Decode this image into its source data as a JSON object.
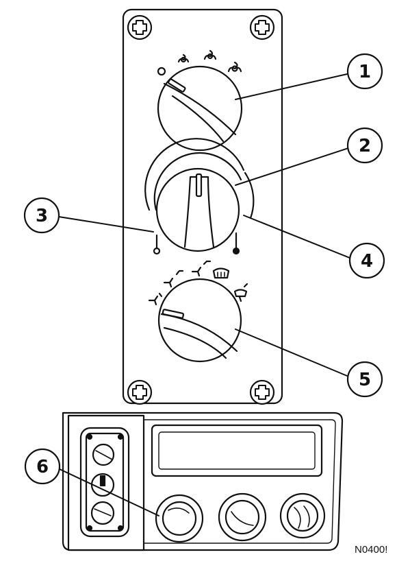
{
  "figure": {
    "code": "N0400!",
    "stroke_color": "#111111",
    "fill_color": "#ffffff"
  },
  "callouts": [
    {
      "id": "callout-1",
      "number": "1"
    },
    {
      "id": "callout-2",
      "number": "2"
    },
    {
      "id": "callout-3",
      "number": "3"
    },
    {
      "id": "callout-4",
      "number": "4"
    },
    {
      "id": "callout-5",
      "number": "5"
    },
    {
      "id": "callout-6",
      "number": "6"
    }
  ],
  "panel": {
    "screw_icon": "phillips-screw-icon",
    "knobs": [
      {
        "name": "fan-speed-knob",
        "icons": [
          "off-circle-icon",
          "fan-low-icon",
          "fan-medium-icon",
          "fan-high-icon"
        ]
      },
      {
        "name": "temperature-knob",
        "icons": [
          "cold-thermometer-icon",
          "hot-thermometer-icon"
        ]
      },
      {
        "name": "air-distribution-knob",
        "icons": [
          "floor-mode-icon",
          "floor-panel-mode-icon",
          "panel-mode-icon",
          "defrost-icon",
          "defrost-floor-icon"
        ]
      }
    ]
  },
  "dashboard": {
    "vents": [
      "vent-left",
      "vent-center",
      "vent-right"
    ]
  }
}
